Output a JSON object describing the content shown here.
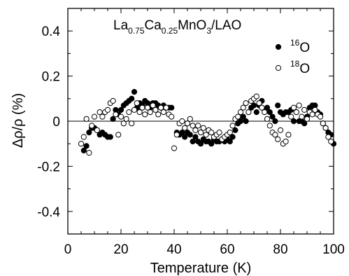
{
  "chart_data": {
    "type": "scatter",
    "title": "",
    "xlabel": "Temperature (K)",
    "ylabel": "Δρ/ρ (%)",
    "xlim": [
      0,
      100
    ],
    "ylim": [
      -0.5,
      0.5
    ],
    "xticks": [
      0,
      20,
      40,
      60,
      80,
      100
    ],
    "yticks": [
      -0.4,
      -0.2,
      0,
      0.2,
      0.4
    ],
    "ytick_labels": [
      "-0.4",
      "-0.2",
      "0",
      "0.2",
      "0.4"
    ],
    "grid": false,
    "zero_line": true,
    "legend_position": "top-right",
    "annotation": {
      "parts": [
        {
          "text": "La",
          "sub": false
        },
        {
          "text": "0.75",
          "sub": true
        },
        {
          "text": "Ca",
          "sub": false
        },
        {
          "text": "0.25",
          "sub": true
        },
        {
          "text": "MnO",
          "sub": false
        },
        {
          "text": "3",
          "sub": true
        },
        {
          "text": "/LAO",
          "sub": false
        }
      ]
    },
    "series": [
      {
        "name_sup": "16",
        "name": "O",
        "marker": "filled-circle",
        "color": "#000000",
        "x": [
          6,
          7,
          8,
          9,
          10,
          11,
          12,
          13,
          14,
          15,
          16,
          17,
          18,
          19,
          20,
          21,
          22,
          23,
          24,
          25,
          26,
          27,
          28,
          29,
          30,
          31,
          32,
          33,
          34,
          35,
          36,
          37,
          38,
          39,
          41,
          42,
          43,
          44,
          45,
          46,
          47,
          48,
          49,
          50,
          51,
          52,
          53,
          54,
          55,
          56,
          57,
          58,
          59,
          60,
          61,
          62,
          63,
          64,
          65,
          66,
          67,
          68,
          69,
          70,
          71,
          72,
          73,
          74,
          75,
          76,
          77,
          78,
          79,
          80,
          81,
          82,
          83,
          84,
          85,
          86,
          87,
          88,
          89,
          90,
          91,
          92,
          93,
          94,
          95,
          96,
          97,
          98,
          99,
          100
        ],
        "y": [
          -0.13,
          -0.11,
          -0.05,
          -0.03,
          -0.03,
          -0.04,
          -0.06,
          -0.05,
          -0.06,
          -0.07,
          -0.07,
          0.01,
          0.05,
          0.03,
          0.05,
          0.07,
          0.08,
          0.09,
          0.1,
          0.13,
          0.06,
          0.08,
          0.07,
          0.09,
          0.08,
          0.06,
          0.08,
          0.08,
          0.07,
          0.06,
          0.07,
          0.06,
          0.06,
          0.06,
          -0.05,
          -0.06,
          -0.05,
          -0.07,
          -0.05,
          -0.06,
          -0.09,
          -0.07,
          -0.09,
          -0.1,
          -0.08,
          -0.09,
          -0.09,
          -0.1,
          -0.08,
          -0.09,
          -0.09,
          -0.08,
          -0.09,
          -0.08,
          -0.09,
          -0.07,
          -0.04,
          -0.01,
          0.0,
          0.02,
          0.0,
          0.04,
          0.06,
          0.07,
          0.04,
          0.07,
          0.09,
          0.05,
          0.06,
          0.04,
          0.02,
          0.0,
          0.07,
          0.04,
          0.03,
          0.04,
          0.04,
          0.05,
          0.0,
          0.04,
          0.0,
          0.0,
          -0.01,
          0.02,
          0.06,
          0.07,
          0.07,
          0.04,
          0.03,
          -0.01,
          -0.03,
          -0.05,
          -0.06,
          -0.1
        ]
      },
      {
        "name_sup": "18",
        "name": "O",
        "marker": "open-circle",
        "color": "#000000",
        "x": [
          5,
          6,
          7,
          8,
          9,
          10,
          11,
          12,
          13,
          14,
          15,
          16,
          17,
          18,
          19,
          20,
          21,
          22,
          23,
          24,
          25,
          26,
          27,
          28,
          29,
          30,
          31,
          32,
          33,
          34,
          35,
          36,
          37,
          38,
          39,
          40,
          41,
          42,
          43,
          44,
          45,
          46,
          47,
          48,
          49,
          50,
          51,
          52,
          53,
          54,
          55,
          56,
          57,
          58,
          59,
          60,
          61,
          62,
          63,
          64,
          65,
          66,
          67,
          68,
          69,
          70,
          71,
          72,
          73,
          74,
          75,
          76,
          77,
          78,
          79,
          80,
          81,
          82,
          83,
          84,
          85,
          86,
          87,
          88,
          89,
          90,
          91,
          92,
          93,
          94,
          95,
          96,
          97,
          98,
          99
        ],
        "y": [
          -0.1,
          -0.07,
          0.01,
          -0.14,
          -0.02,
          0.02,
          -0.04,
          0.04,
          0.02,
          0.04,
          0.05,
          0.08,
          0.09,
          0.03,
          -0.06,
          0.02,
          -0.01,
          0.01,
          0.04,
          -0.01,
          0.05,
          0.08,
          0.04,
          0.06,
          0.03,
          0.06,
          0.04,
          0.07,
          0.05,
          0.03,
          0.06,
          0.04,
          0.06,
          0.03,
          0.02,
          -0.12,
          -0.06,
          -0.01,
          0.0,
          -0.03,
          -0.01,
          0.01,
          -0.02,
          -0.04,
          -0.02,
          -0.05,
          -0.03,
          -0.06,
          -0.04,
          -0.05,
          -0.07,
          -0.06,
          -0.05,
          -0.08,
          -0.07,
          -0.06,
          -0.05,
          -0.02,
          0.01,
          0.02,
          0.04,
          0.06,
          0.08,
          0.04,
          0.09,
          0.1,
          0.11,
          0.08,
          0.06,
          0.04,
          0.01,
          -0.02,
          -0.05,
          -0.06,
          -0.08,
          -0.04,
          -0.1,
          -0.09,
          -0.06,
          0.02,
          0.06,
          0.04,
          0.07,
          0.02,
          0.05,
          0.01,
          0.04,
          0.03,
          0.05,
          0.03,
          0.02,
          -0.01,
          -0.03,
          -0.07,
          -0.09
        ]
      }
    ]
  }
}
